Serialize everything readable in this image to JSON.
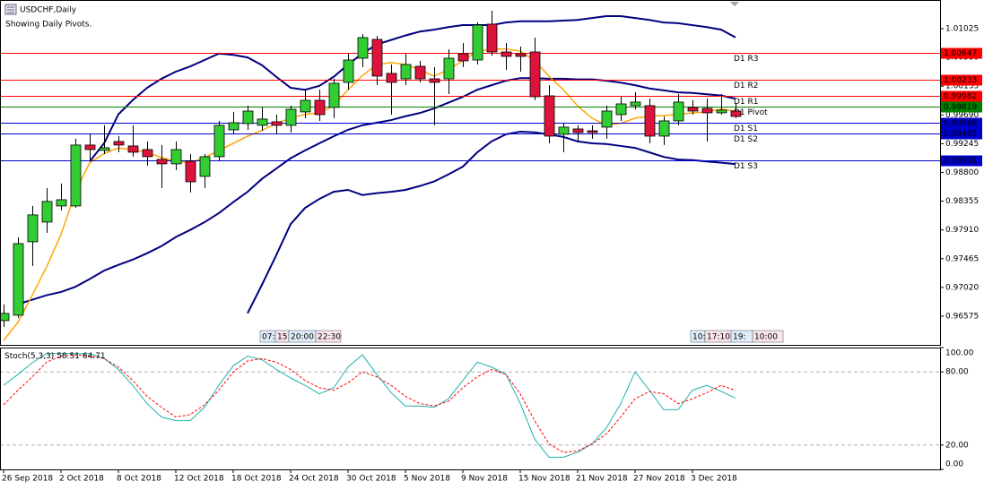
{
  "chart_data": [
    {
      "type": "candlestick",
      "title": "USDCHF,Daily",
      "subtitle": "Showing Daily Pivots.",
      "categories": [
        "26 Sep 2018",
        null,
        null,
        null,
        "2 Oct 2018",
        null,
        null,
        null,
        "8 Oct 2018",
        null,
        null,
        null,
        "12 Oct 2018",
        null,
        null,
        null,
        "18 Oct 2018",
        null,
        null,
        null,
        "24 Oct 2018",
        null,
        null,
        null,
        "30 Oct 2018",
        null,
        null,
        null,
        "5 Nov 2018",
        null,
        null,
        null,
        "9 Nov 2018",
        null,
        null,
        null,
        "15 Nov 2018",
        null,
        null,
        null,
        "21 Nov 2018",
        null,
        null,
        null,
        "27 Nov 2018",
        null,
        null,
        null,
        "3 Dec 2018",
        null,
        null,
        null
      ],
      "open": [
        0.96507,
        0.9659,
        0.97727,
        0.98032,
        0.98281,
        0.98281,
        0.99224,
        0.99141,
        0.99279,
        0.9921,
        0.99154,
        0.99002,
        0.98933,
        0.98974,
        0.98739,
        0.99044,
        0.99459,
        0.99556,
        0.99529,
        0.99584,
        0.99529,
        0.99737,
        0.99917,
        0.99806,
        1.00194,
        1.00568,
        1.00859,
        1.00333,
        1.00249,
        1.00443,
        1.00249,
        1.00249,
        1.00637,
        1.0054,
        1.01095,
        1.00665,
        1.00637,
        1.00665,
        0.99986,
        0.9939,
        0.99473,
        0.99445,
        0.99501,
        0.99695,
        0.99834,
        0.99834,
        0.99362,
        0.99598,
        0.99806,
        0.99792,
        0.99723,
        0.9975
      ],
      "high": [
        0.96757,
        0.97796,
        0.98281,
        0.98558,
        0.98628,
        0.99321,
        0.9939,
        0.99529,
        0.99362,
        0.99529,
        0.99279,
        0.99224,
        0.99279,
        0.99085,
        0.99085,
        0.99598,
        0.99737,
        0.99834,
        0.99806,
        0.99695,
        0.99834,
        1.00083,
        1.00083,
        1.00249,
        1.00637,
        1.00942,
        1.00915,
        1.00471,
        1.00637,
        1.00527,
        1.0043,
        1.00707,
        1.00804,
        1.01123,
        1.01303,
        1.00804,
        1.00748,
        1.00887,
        1.00152,
        0.99556,
        0.99529,
        0.99529,
        0.99834,
        0.99972,
        1.00041,
        0.99944,
        0.99667,
        1.00014,
        0.99917,
        0.99944,
        1.00014,
        0.99861
      ],
      "low": [
        0.9641,
        0.96549,
        0.97353,
        0.97865,
        0.98213,
        0.98254,
        0.98974,
        0.99085,
        0.99113,
        0.99044,
        0.98905,
        0.98558,
        0.98836,
        0.98489,
        0.98558,
        0.98974,
        0.9939,
        0.99459,
        0.99445,
        0.9939,
        0.99418,
        0.9964,
        0.99598,
        0.9964,
        1.00083,
        1.0043,
        1.00152,
        0.99695,
        1.00152,
        1.00194,
        0.99529,
        1.00014,
        1.0043,
        1.00471,
        1.0061,
        1.00388,
        1.0036,
        0.99917,
        0.99251,
        0.99113,
        0.99279,
        0.99321,
        0.99321,
        0.99598,
        0.99778,
        0.99251,
        0.99224,
        0.99529,
        0.99695,
        0.99279,
        0.99695,
        0.9964
      ],
      "close": [
        0.96618,
        0.97699,
        0.98143,
        0.98351,
        0.98378,
        0.99224,
        0.99154,
        0.99182,
        0.99224,
        0.99113,
        0.99044,
        0.98933,
        0.99154,
        0.98655,
        0.99044,
        0.99529,
        0.9957,
        0.9975,
        0.99626,
        0.99529,
        0.99778,
        0.99917,
        0.99695,
        1.0018,
        1.0054,
        1.00887,
        1.00291,
        1.00194,
        1.00471,
        1.00249,
        1.00194,
        1.00568,
        1.00527,
        1.01081,
        1.00665,
        1.00596,
        1.00596,
        0.99972,
        0.99362,
        0.99501,
        0.99418,
        0.99418,
        0.9975,
        0.99861,
        0.99889,
        0.99362,
        0.99598,
        0.99889,
        0.9975,
        0.99723,
        0.99764,
        0.99667
      ],
      "up_color": "#32cd32",
      "down_color": "#dc143c",
      "lines": [
        {
          "color": "#000080",
          "width": 2,
          "values": [
            null,
            null,
            null,
            null,
            null,
            null,
            0.9897,
            0.9925,
            0.997,
            0.9992,
            1.0011,
            1.0025,
            1.0036,
            1.0044,
            1.0054,
            1.0064,
            1.0062,
            1.0058,
            1.0046,
            1.0028,
            1.0011,
            1.0008,
            1.0014,
            1.0028,
            1.0047,
            1.0064,
            1.0078,
            1.0085,
            1.0092,
            1.0098,
            1.0101,
            1.0105,
            1.0108,
            1.0108,
            1.0108,
            1.0112,
            1.0114,
            1.0114,
            1.0114,
            1.0115,
            1.0116,
            1.0119,
            1.0122,
            1.0122,
            1.0119,
            1.0116,
            1.0112,
            1.0111,
            1.0108,
            1.0105,
            1.0101,
            1.0089
          ]
        },
        {
          "color": "#000080",
          "width": 2,
          "values": [
            null,
            0.9676,
            0.9683,
            0.969,
            0.9695,
            0.9703,
            0.9715,
            0.9728,
            0.9737,
            0.9745,
            0.9755,
            0.9766,
            0.978,
            0.9791,
            0.9803,
            0.9817,
            0.9834,
            0.985,
            0.987,
            0.9886,
            0.9902,
            0.9914,
            0.9925,
            0.9936,
            0.9946,
            0.9953,
            0.9957,
            0.9961,
            0.9967,
            0.9972,
            0.9979,
            0.9988,
            0.9997,
            1.0008,
            1.0015,
            1.0022,
            1.0026,
            1.0026,
            1.0025,
            1.0025,
            1.0024,
            1.0024,
            1.0022,
            1.0019,
            1.0015,
            1.001,
            1.0007,
            1.0004,
            1.0003,
            1.0001,
            0.9999,
            0.9994
          ]
        },
        {
          "color": "#000080",
          "width": 2,
          "values": [
            null,
            null,
            null,
            null,
            null,
            null,
            null,
            null,
            null,
            null,
            null,
            null,
            null,
            null,
            null,
            null,
            null,
            0.9662,
            0.9706,
            0.9752,
            0.98,
            0.9825,
            0.9839,
            0.985,
            0.9853,
            0.9845,
            0.9848,
            0.985,
            0.9853,
            0.9859,
            0.9866,
            0.9877,
            0.9889,
            0.9911,
            0.9928,
            0.9939,
            0.9943,
            0.9942,
            0.9939,
            0.9935,
            0.9928,
            0.9925,
            0.9924,
            0.9921,
            0.9918,
            0.9911,
            0.9904,
            0.99,
            0.9899,
            0.9897,
            0.9895,
            0.9893
          ]
        },
        {
          "color": "#ffa500",
          "width": 1.5,
          "values": [
            0.962,
            0.9648,
            0.969,
            0.9734,
            0.9784,
            0.9849,
            0.9895,
            0.9909,
            0.9918,
            0.9915,
            0.9911,
            0.9903,
            0.9897,
            0.9895,
            0.9903,
            0.9914,
            0.9925,
            0.9936,
            0.9945,
            0.9956,
            0.9964,
            0.997,
            0.9972,
            0.9983,
            1.0008,
            1.003,
            1.0047,
            1.005,
            1.0047,
            1.0039,
            1.0029,
            1.0039,
            1.0053,
            1.0067,
            1.0071,
            1.0071,
            1.0068,
            1.0053,
            1.0029,
            1.0008,
            0.9983,
            0.9964,
            0.9953,
            0.9956,
            0.9964,
            0.9967,
            0.9968,
            0.997,
            0.9972,
            0.9974,
            0.9978,
            0.9975
          ]
        }
      ],
      "levels": [
        {
          "name": "D1 R3",
          "value": 1.00647,
          "color": "#ff0000"
        },
        {
          "name": "D1 R2",
          "value": 1.00233,
          "color": "#ff0000"
        },
        {
          "name": "D1 R1",
          "value": 0.99982,
          "color": "#ff0000"
        },
        {
          "name": "D1 Pivot",
          "value": 0.99819,
          "color": "#008000"
        },
        {
          "name": "D1 S1",
          "value": 0.99568,
          "color": "#0000cd"
        },
        {
          "name": "D1 S2",
          "value": 0.99405,
          "color": "#0000cd"
        },
        {
          "name": "D1 S3",
          "value": 0.98991,
          "color": "#0000cd"
        }
      ],
      "session_labels": [
        "07:",
        "15:",
        "20:00",
        "22:30",
        "10:",
        "17:10",
        "19:",
        "10:00"
      ],
      "ylim": [
        0.96131,
        1.01469
      ],
      "yticks": [
        1.01025,
        {
          "value": 1.0058,
          "label": "1.00580"
        },
        1.00135,
        {
          "value": 0.9969,
          "label": "0.99690"
        },
        0.99245,
        {
          "value": 0.988,
          "label": "0.98800"
        },
        0.98355,
        {
          "value": 0.9791,
          "label": "0.97910"
        },
        0.97465,
        {
          "value": 0.9702,
          "label": "0.97020"
        },
        0.96575
      ]
    },
    {
      "type": "line",
      "title": "Stoch(5,3,3)",
      "series": [
        {
          "color": "#20b2aa",
          "values": [
            69,
            78,
            87.5,
            95,
            95,
            95,
            95,
            91,
            82,
            69,
            54,
            43,
            40,
            40,
            51,
            69,
            85,
            93,
            90,
            82,
            75,
            69,
            62,
            67,
            84,
            94,
            78,
            63,
            52,
            52,
            51,
            58,
            73,
            88,
            84,
            78,
            54,
            25,
            10,
            10,
            14,
            21,
            34,
            54,
            80,
            65,
            49,
            49,
            65,
            69,
            64,
            58.51
          ]
        },
        {
          "color": "#ff0000",
          "dash": true,
          "values": [
            53,
            65,
            76,
            88,
            93,
            94,
            93,
            91,
            84,
            73,
            60,
            51,
            43,
            45,
            53,
            65,
            80,
            89,
            91,
            88,
            82,
            73,
            67,
            65,
            71,
            80,
            76,
            69,
            60,
            54,
            52,
            56,
            67,
            76,
            82,
            78,
            62,
            40,
            21,
            14,
            15,
            21,
            29,
            43,
            58,
            64,
            62,
            54,
            58,
            63,
            69,
            64.71
          ]
        }
      ],
      "levels": [
        80,
        20
      ],
      "ylim": [
        0,
        100
      ],
      "yticks": [
        {
          "value": 100,
          "label": "100.00"
        },
        {
          "value": 80,
          "label": "80.00"
        },
        {
          "value": 20,
          "label": "20.00"
        },
        {
          "value": 0,
          "label": "0.00"
        }
      ]
    }
  ]
}
